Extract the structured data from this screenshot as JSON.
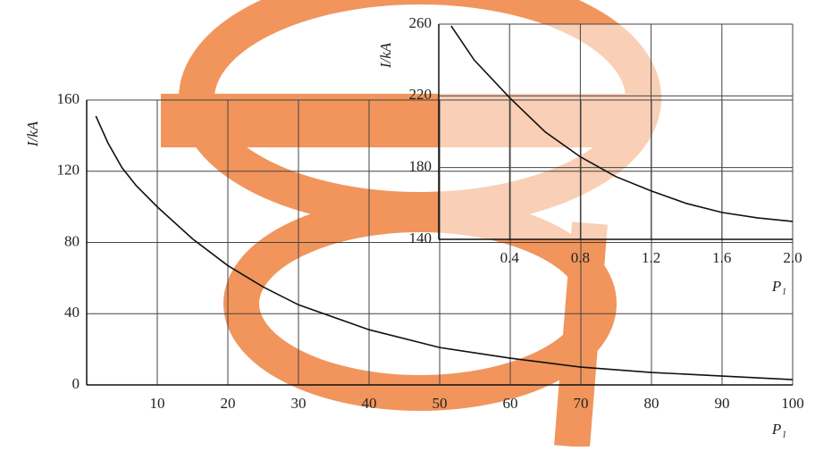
{
  "chart_data": [
    {
      "type": "line",
      "ylabel": "I/kA",
      "xlabel": "P₁",
      "xlim": [
        0,
        100
      ],
      "ylim": [
        0,
        160
      ],
      "xticks": [
        10,
        20,
        30,
        40,
        50,
        60,
        70,
        80,
        90,
        100
      ],
      "yticks": [
        0,
        40,
        80,
        120,
        160
      ],
      "grid": true,
      "x": [
        1.3,
        3,
        5,
        7,
        10,
        15,
        20,
        25,
        30,
        40,
        50,
        60,
        70,
        80,
        90,
        100
      ],
      "series": [
        {
          "color": "#111111",
          "values": [
            151,
            136,
            122,
            112,
            100,
            82,
            67,
            55,
            45,
            31,
            21,
            15,
            10,
            7,
            5,
            3
          ]
        }
      ]
    },
    {
      "type": "line",
      "ylabel": "I/kA",
      "xlabel": "P₁",
      "xlim": [
        0,
        2
      ],
      "ylim": [
        140,
        260
      ],
      "xticks": [
        0.4,
        0.8,
        1.2,
        1.6,
        {
          "value": 2,
          "label": "2.0"
        }
      ],
      "yticks": [
        140,
        180,
        220,
        260
      ],
      "grid": true,
      "x": [
        0.07,
        0.2,
        0.4,
        0.6,
        0.8,
        1.0,
        1.2,
        1.4,
        1.6,
        1.8,
        2.0
      ],
      "series": [
        {
          "color": "#111111",
          "values": [
            259,
            240,
            219,
            200,
            186,
            175,
            167,
            160,
            155,
            152,
            150
          ]
        }
      ]
    }
  ]
}
